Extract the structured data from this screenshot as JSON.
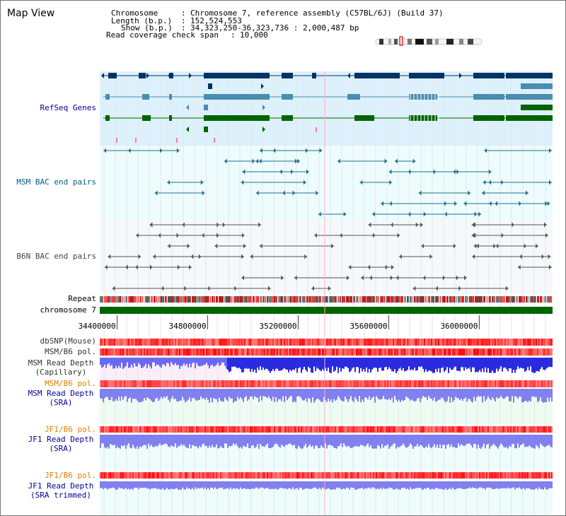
{
  "title": "Map View",
  "info": {
    "chromosome_key": "Chromosome",
    "chromosome_val": "Chromosome 7, reference assembly (C57BL/6J) (Build 37)",
    "length_key": "Length (b.p.)",
    "length_val": "152,524,553",
    "show_key": "Show (b.p.)",
    "show_val": "34,323,250-36,323,736 : 2,000,487 bp",
    "coverage_key": "Read coverage check span",
    "coverage_val": "10,000"
  },
  "tracks": {
    "refseq": "RefSeq Genes",
    "msm_bac": "MSM BAC end pairs",
    "b6n_bac": "B6N BAC end pairs",
    "repeat": "Repeat",
    "chromosome": "chromosome 7",
    "dbsnp": "dbSNP(Mouse)",
    "msm_b6_pol_1": "MSM/B6 pol.",
    "msm_depth_cap_1": "MSM Read Depth",
    "msm_depth_cap_2": "(Capillary)",
    "msm_b6_pol_2": "MSM/B6 pol.",
    "msm_depth_sra_1": "MSM Read Depth",
    "msm_depth_sra_2": "(SRA)",
    "jf1_b6_pol_1": "JF1/B6 pol.",
    "jf1_depth_sra_1": "JF1 Read Depth",
    "jf1_depth_sra_2": "(SRA)",
    "jf1_b6_pol_2": "JF1/B6 pol.",
    "jf1_depth_trim_1": "JF1 Read Depth",
    "jf1_depth_trim_2": "(SRA trimmed)"
  },
  "axis": {
    "ticks": [
      34400000,
      34800000,
      35200000,
      35600000,
      36000000
    ],
    "tick_labels": [
      "34400000",
      "34800000",
      "35200000",
      "35600000",
      "36000000"
    ],
    "range": [
      34323250,
      36323736
    ]
  },
  "colors": {
    "gene_dark": "#003366",
    "gene_mid": "#4a8db0",
    "gene_green": "#006400",
    "msm_bac": "#1f6f8b",
    "b6n_bac": "#555555",
    "chromosome_bar": "#006400",
    "depth": "#3333dd",
    "depth_light": "#8080f0",
    "label_blue": "#000099",
    "label_orange": "#e08000",
    "label_teal": "#005f7f"
  }
}
